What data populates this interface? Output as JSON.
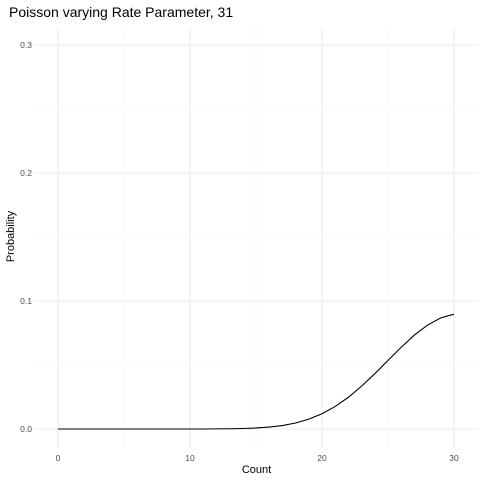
{
  "chart_data": {
    "type": "line",
    "title": "Poisson varying Rate Parameter, 31",
    "xlabel": "Count",
    "ylabel": "Probability",
    "xlim": [
      0,
      30
    ],
    "ylim": [
      0,
      0.3
    ],
    "x_ticks": [
      0,
      10,
      20,
      30
    ],
    "y_ticks": [
      0.0,
      0.1,
      0.2,
      0.3
    ],
    "x_tick_labels": [
      "0",
      "10",
      "20",
      "30"
    ],
    "y_tick_labels": [
      "0.0",
      "0.1",
      "0.2",
      "0.3"
    ],
    "grid": true,
    "legend": "none",
    "series": [
      {
        "color": "#000000",
        "x": [
          0,
          1,
          2,
          3,
          4,
          5,
          6,
          7,
          8,
          9,
          10,
          11,
          12,
          13,
          14,
          15,
          16,
          17,
          18,
          19,
          20,
          21,
          22,
          23,
          24,
          25,
          26,
          27,
          28,
          29,
          30
        ],
        "values": [
          0,
          0,
          0,
          0,
          0,
          0,
          0,
          0,
          0,
          0,
          0,
          0,
          0.0001,
          0.0002,
          0.0004,
          0.0008,
          0.0015,
          0.0027,
          0.0047,
          0.0077,
          0.0119,
          0.0176,
          0.0248,
          0.0335,
          0.0432,
          0.0536,
          0.0639,
          0.0734,
          0.0812,
          0.0868,
          0.0897
        ]
      }
    ]
  }
}
